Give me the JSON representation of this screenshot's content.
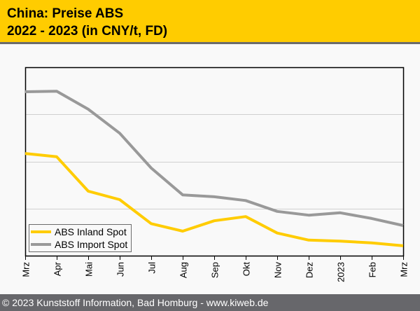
{
  "header": {
    "title_line1": "China: Preise ABS",
    "title_line2": "2022 - 2023 (in CNY/t, FD)"
  },
  "footer": {
    "text": "© 2023 Kunststoff Information, Bad Homburg - www.kiweb.de"
  },
  "colors": {
    "header_bg": "#ffcc00",
    "footer_bg": "#67676b",
    "inland": "#ffcc00",
    "import": "#999999"
  },
  "chart_data": {
    "type": "line",
    "title": "China: Preise ABS 2022 - 2023 (in CNY/t, FD)",
    "xlabel": "",
    "ylabel": "",
    "y_unit_note": "y-axis unlabeled; values in gridline-band units (0 = bottom, 4 = top)",
    "ylim": [
      0,
      4
    ],
    "grid": true,
    "legend_position": "bottom-left",
    "categories": [
      "Mrz",
      "Apr",
      "Mai",
      "Jun",
      "Jul",
      "Aug",
      "Sep",
      "Okt",
      "Nov",
      "Dez",
      "2023",
      "Feb",
      "Mrz"
    ],
    "series": [
      {
        "name": "ABS Inland Spot",
        "color": "#ffcc00",
        "values": [
          2.17,
          2.1,
          1.37,
          1.19,
          0.68,
          0.52,
          0.74,
          0.83,
          0.48,
          0.33,
          0.31,
          0.27,
          0.21
        ]
      },
      {
        "name": "ABS Import Spot",
        "color": "#999999",
        "values": [
          3.48,
          3.49,
          3.11,
          2.6,
          1.86,
          1.29,
          1.25,
          1.17,
          0.94,
          0.86,
          0.91,
          0.79,
          0.64
        ]
      }
    ]
  }
}
